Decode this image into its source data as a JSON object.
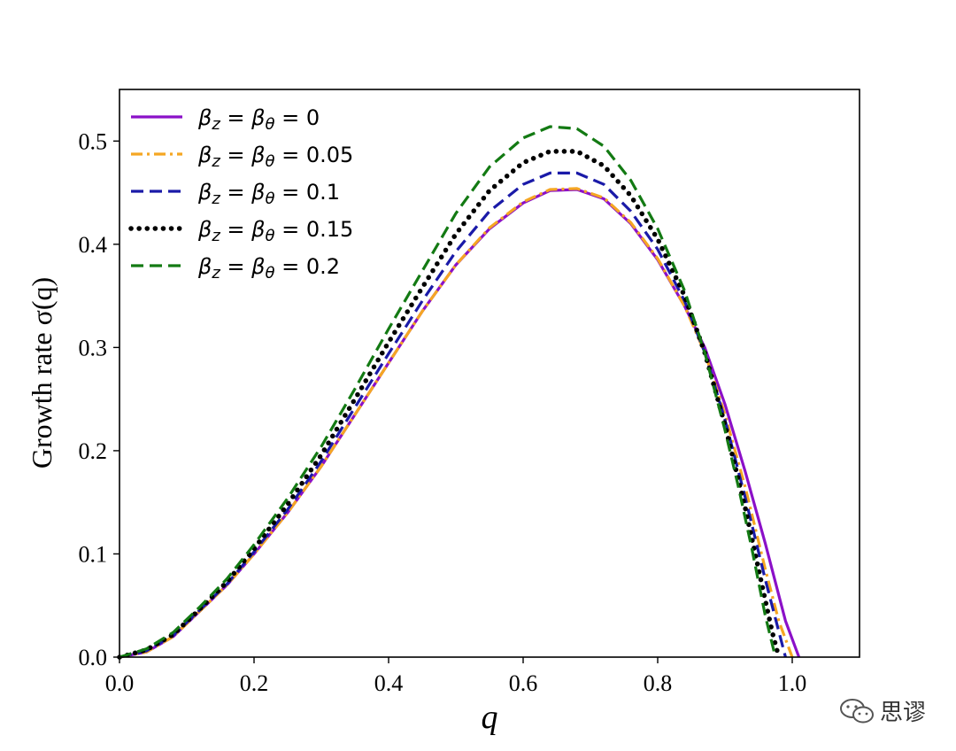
{
  "chart_data": {
    "type": "line",
    "title": "",
    "xlabel": "q",
    "ylabel": "Growth rate σ(q)",
    "xlim": [
      0.0,
      1.1
    ],
    "ylim": [
      0.0,
      0.55
    ],
    "xticks": [
      "0.0",
      "0.2",
      "0.4",
      "0.6",
      "0.8",
      "1.0"
    ],
    "yticks": [
      "0.0",
      "0.1",
      "0.2",
      "0.3",
      "0.4",
      "0.5"
    ],
    "grid": false,
    "legend_position": "upper-left",
    "series": [
      {
        "name": "β_z = β_θ = 0",
        "legend_value": "0",
        "color": "#8b10c8",
        "style": "solid",
        "x": [
          0,
          0.04,
          0.08,
          0.12,
          0.16,
          0.2,
          0.25,
          0.3,
          0.35,
          0.4,
          0.45,
          0.5,
          0.55,
          0.6,
          0.64,
          0.68,
          0.72,
          0.76,
          0.8,
          0.84,
          0.87,
          0.9,
          0.93,
          0.96,
          0.99,
          1.01
        ],
        "y": [
          0,
          0.005,
          0.02,
          0.045,
          0.07,
          0.1,
          0.14,
          0.185,
          0.235,
          0.285,
          0.335,
          0.38,
          0.415,
          0.44,
          0.452,
          0.453,
          0.444,
          0.42,
          0.385,
          0.34,
          0.3,
          0.245,
          0.18,
          0.11,
          0.035,
          0.0
        ]
      },
      {
        "name": "β_z = β_θ = 0.05",
        "legend_value": "0.05",
        "color": "#f5a623",
        "style": "dashdot",
        "x": [
          0,
          0.04,
          0.08,
          0.12,
          0.16,
          0.2,
          0.25,
          0.3,
          0.35,
          0.4,
          0.45,
          0.5,
          0.55,
          0.6,
          0.64,
          0.68,
          0.72,
          0.76,
          0.8,
          0.84,
          0.87,
          0.9,
          0.93,
          0.96,
          0.98,
          1.0
        ],
        "y": [
          0,
          0.005,
          0.02,
          0.045,
          0.07,
          0.1,
          0.14,
          0.185,
          0.235,
          0.285,
          0.335,
          0.38,
          0.416,
          0.441,
          0.453,
          0.454,
          0.445,
          0.421,
          0.386,
          0.34,
          0.295,
          0.235,
          0.165,
          0.085,
          0.035,
          0.0
        ]
      },
      {
        "name": "β_z = β_θ = 0.1",
        "legend_value": "0.1",
        "color": "#1a1aa8",
        "style": "dashed",
        "x": [
          0,
          0.04,
          0.08,
          0.12,
          0.16,
          0.2,
          0.25,
          0.3,
          0.35,
          0.4,
          0.45,
          0.5,
          0.55,
          0.6,
          0.64,
          0.68,
          0.72,
          0.76,
          0.8,
          0.84,
          0.87,
          0.9,
          0.93,
          0.96,
          0.98,
          0.99
        ],
        "y": [
          0,
          0.006,
          0.021,
          0.046,
          0.071,
          0.102,
          0.143,
          0.19,
          0.242,
          0.294,
          0.345,
          0.393,
          0.432,
          0.458,
          0.469,
          0.469,
          0.458,
          0.432,
          0.395,
          0.345,
          0.295,
          0.23,
          0.155,
          0.075,
          0.025,
          0.0
        ]
      },
      {
        "name": "β_z = β_θ = 0.15",
        "legend_value": "0.15",
        "color": "#000000",
        "style": "dotted",
        "x": [
          0,
          0.04,
          0.08,
          0.12,
          0.16,
          0.2,
          0.25,
          0.3,
          0.35,
          0.4,
          0.45,
          0.5,
          0.55,
          0.6,
          0.64,
          0.68,
          0.72,
          0.76,
          0.8,
          0.84,
          0.87,
          0.9,
          0.93,
          0.95,
          0.97,
          0.98
        ],
        "y": [
          0,
          0.007,
          0.022,
          0.047,
          0.073,
          0.105,
          0.148,
          0.196,
          0.25,
          0.305,
          0.358,
          0.41,
          0.452,
          0.479,
          0.49,
          0.49,
          0.476,
          0.447,
          0.405,
          0.35,
          0.295,
          0.225,
          0.145,
          0.085,
          0.025,
          0.0
        ]
      },
      {
        "name": "β_z = β_θ = 0.2",
        "legend_value": "0.2",
        "color": "#137a13",
        "style": "dashed",
        "x": [
          0,
          0.04,
          0.08,
          0.12,
          0.16,
          0.2,
          0.25,
          0.3,
          0.35,
          0.4,
          0.45,
          0.5,
          0.55,
          0.6,
          0.64,
          0.68,
          0.72,
          0.76,
          0.8,
          0.84,
          0.87,
          0.9,
          0.92,
          0.94,
          0.96,
          0.975
        ],
        "y": [
          0,
          0.008,
          0.024,
          0.049,
          0.076,
          0.109,
          0.154,
          0.204,
          0.26,
          0.318,
          0.374,
          0.43,
          0.475,
          0.503,
          0.514,
          0.512,
          0.495,
          0.462,
          0.415,
          0.355,
          0.295,
          0.22,
          0.165,
          0.105,
          0.04,
          0.0
        ]
      }
    ]
  },
  "watermark": {
    "text": "思谬",
    "icon": "wechat-icon"
  }
}
